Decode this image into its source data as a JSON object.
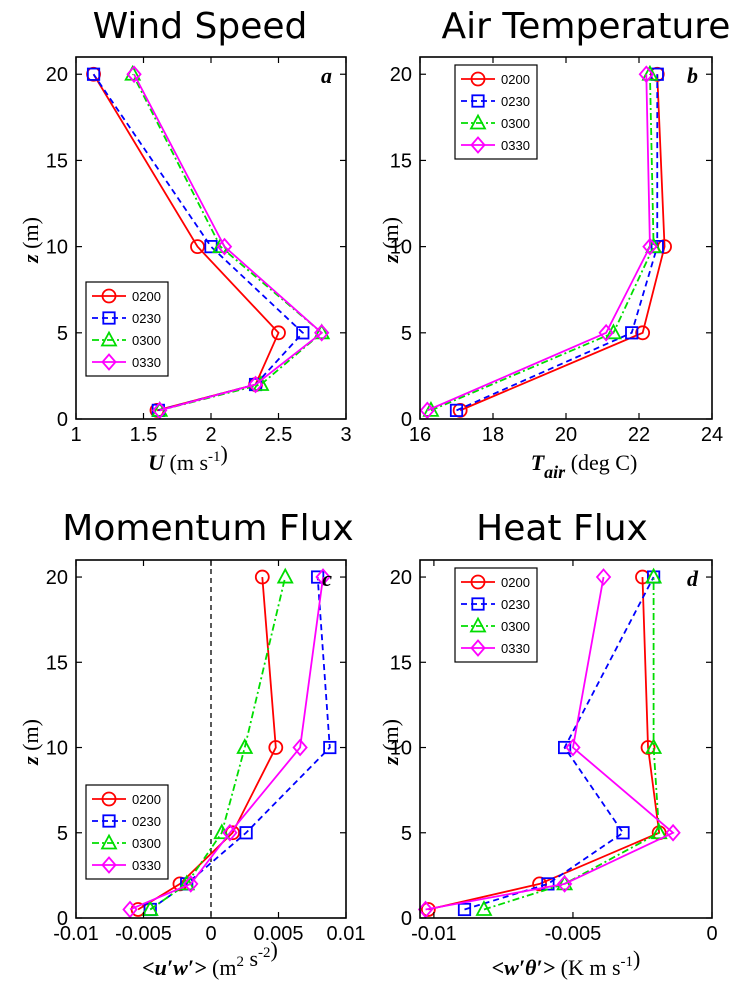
{
  "figure": {
    "panels": [
      {
        "key": "a",
        "title": "Wind Speed",
        "panel_label": "a",
        "xlabel_main": "U",
        "xlabel_sub": "",
        "xlabel_unit": "(m s",
        "xlabel_sup": "-1",
        "xlabel_tail": ")",
        "ylabel_main": "z",
        "ylabel_unit": "(m)",
        "legend_pos": "left-middle"
      },
      {
        "key": "b",
        "title": "Air Temperature",
        "panel_label": "b",
        "xlabel_main": "T",
        "xlabel_sub": "air",
        "xlabel_unit": "(deg C)",
        "xlabel_sup": "",
        "xlabel_tail": "",
        "ylabel_main": "z",
        "ylabel_unit": "(m)",
        "legend_pos": "top-left"
      },
      {
        "key": "c",
        "title": "Momentum Flux",
        "panel_label": "c",
        "xlabel_main": "<u′w′>",
        "xlabel_sub": "",
        "xlabel_unit": "(m",
        "xlabel_sup": "2",
        "xlabel_unit2": " s",
        "xlabel_sup2": "-2",
        "xlabel_tail": ")",
        "ylabel_main": "z",
        "ylabel_unit": "(m)",
        "legend_pos": "left-bottom"
      },
      {
        "key": "d",
        "title": "Heat Flux",
        "panel_label": "d",
        "xlabel_main": "<w′θ′>",
        "xlabel_sub": "",
        "xlabel_unit": "(K m s",
        "xlabel_sup": "-1",
        "xlabel_tail": ")",
        "ylabel_main": "z",
        "ylabel_unit": "(m)",
        "legend_pos": "top-left"
      }
    ]
  },
  "chart_data": [
    {
      "type": "line",
      "title": "Wind Speed",
      "xlabel": "U (m s-1)",
      "ylabel": "z (m)",
      "xlim": [
        1,
        3
      ],
      "ylim": [
        0,
        21
      ],
      "xticks": [
        "1",
        "1.5",
        "2",
        "2.5",
        "3"
      ],
      "xtick_values": [
        1,
        1.5,
        2,
        2.5,
        3
      ],
      "yticks": [
        "0",
        "5",
        "10",
        "15",
        "20"
      ],
      "ytick_values": [
        0,
        5,
        10,
        15,
        20
      ],
      "z": [
        0.5,
        2,
        5,
        10,
        20
      ],
      "series": [
        {
          "name": "0200",
          "color": "#ff0000",
          "marker": "circle",
          "dash": "solid",
          "values": [
            1.6,
            2.33,
            2.5,
            1.9,
            1.13
          ]
        },
        {
          "name": "0230",
          "color": "#0000ff",
          "marker": "square",
          "dash": "dash",
          "values": [
            1.61,
            2.33,
            2.68,
            2.0,
            1.13
          ]
        },
        {
          "name": "0300",
          "color": "#00dd00",
          "marker": "triangle",
          "dash": "dashdot",
          "values": [
            1.62,
            2.37,
            2.82,
            2.07,
            1.42
          ]
        },
        {
          "name": "0330",
          "color": "#ff00ff",
          "marker": "diamond",
          "dash": "solid",
          "values": [
            1.62,
            2.33,
            2.82,
            2.1,
            1.43
          ]
        }
      ]
    },
    {
      "type": "line",
      "title": "Air Temperature",
      "xlabel": "T_air (deg C)",
      "ylabel": "z (m)",
      "xlim": [
        16,
        24
      ],
      "ylim": [
        0,
        21
      ],
      "xticks": [
        "16",
        "18",
        "20",
        "22",
        "24"
      ],
      "xtick_values": [
        16,
        18,
        20,
        22,
        24
      ],
      "yticks": [
        "0",
        "5",
        "10",
        "15",
        "20"
      ],
      "ytick_values": [
        0,
        5,
        10,
        15,
        20
      ],
      "z": [
        0.5,
        5,
        10,
        20
      ],
      "series": [
        {
          "name": "0200",
          "color": "#ff0000",
          "marker": "circle",
          "dash": "solid",
          "values": [
            17.1,
            22.1,
            22.7,
            22.5
          ]
        },
        {
          "name": "0230",
          "color": "#0000ff",
          "marker": "square",
          "dash": "dash",
          "values": [
            17.0,
            21.8,
            22.5,
            22.5
          ]
        },
        {
          "name": "0300",
          "color": "#00dd00",
          "marker": "triangle",
          "dash": "dashdot",
          "values": [
            16.3,
            21.3,
            22.4,
            22.3
          ]
        },
        {
          "name": "0330",
          "color": "#ff00ff",
          "marker": "diamond",
          "dash": "solid",
          "values": [
            16.2,
            21.1,
            22.3,
            22.2
          ]
        }
      ]
    },
    {
      "type": "line",
      "title": "Momentum Flux",
      "xlabel": "<u′w′> (m2 s-2)",
      "ylabel": "z (m)",
      "xlim": [
        -0.01,
        0.01
      ],
      "ylim": [
        0,
        21
      ],
      "xticks": [
        "-0.01",
        "-0.005",
        "0",
        "0.005",
        "0.01"
      ],
      "xtick_values": [
        -0.01,
        -0.005,
        0,
        0.005,
        0.01
      ],
      "yticks": [
        "0",
        "5",
        "10",
        "15",
        "20"
      ],
      "ytick_values": [
        0,
        5,
        10,
        15,
        20
      ],
      "zero_line": 0,
      "z": [
        0.5,
        2,
        5,
        10,
        20
      ],
      "series": [
        {
          "name": "0200",
          "color": "#ff0000",
          "marker": "circle",
          "dash": "solid",
          "values": [
            -0.0054,
            -0.0023,
            0.0016,
            0.0048,
            0.0038
          ]
        },
        {
          "name": "0230",
          "color": "#0000ff",
          "marker": "square",
          "dash": "dash",
          "values": [
            -0.0045,
            -0.0018,
            0.0026,
            0.0088,
            0.0079
          ]
        },
        {
          "name": "0300",
          "color": "#00dd00",
          "marker": "triangle",
          "dash": "dashdot",
          "values": [
            -0.0045,
            -0.0018,
            0.0008,
            0.0025,
            0.0055
          ]
        },
        {
          "name": "0330",
          "color": "#ff00ff",
          "marker": "diamond",
          "dash": "solid",
          "values": [
            -0.006,
            -0.0015,
            0.0014,
            0.0066,
            0.0083
          ]
        }
      ]
    },
    {
      "type": "line",
      "title": "Heat Flux",
      "xlabel": "<w′θ′> (K m s-1)",
      "ylabel": "z (m)",
      "xlim": [
        -0.0105,
        0
      ],
      "ylim": [
        0,
        21
      ],
      "xticks": [
        "-0.01",
        "-0.005",
        "0"
      ],
      "xtick_values": [
        -0.01,
        -0.005,
        0
      ],
      "yticks": [
        "0",
        "5",
        "10",
        "15",
        "20"
      ],
      "ytick_values": [
        0,
        5,
        10,
        15,
        20
      ],
      "z": [
        0.5,
        2,
        5,
        10,
        20
      ],
      "series": [
        {
          "name": "0200",
          "color": "#ff0000",
          "marker": "circle",
          "dash": "solid",
          "values": [
            -0.0102,
            -0.0062,
            -0.0019,
            -0.0023,
            -0.0025
          ]
        },
        {
          "name": "0230",
          "color": "#0000ff",
          "marker": "square",
          "dash": "dash",
          "values": [
            -0.0089,
            -0.0059,
            -0.0032,
            -0.0053,
            -0.0021
          ]
        },
        {
          "name": "0300",
          "color": "#00dd00",
          "marker": "triangle",
          "dash": "dashdot",
          "values": [
            -0.0082,
            -0.0053,
            -0.0019,
            -0.0021,
            -0.0021
          ]
        },
        {
          "name": "0330",
          "color": "#ff00ff",
          "marker": "diamond",
          "dash": "solid",
          "values": [
            -0.0103,
            -0.0053,
            -0.0014,
            -0.005,
            -0.0039
          ]
        }
      ]
    }
  ]
}
